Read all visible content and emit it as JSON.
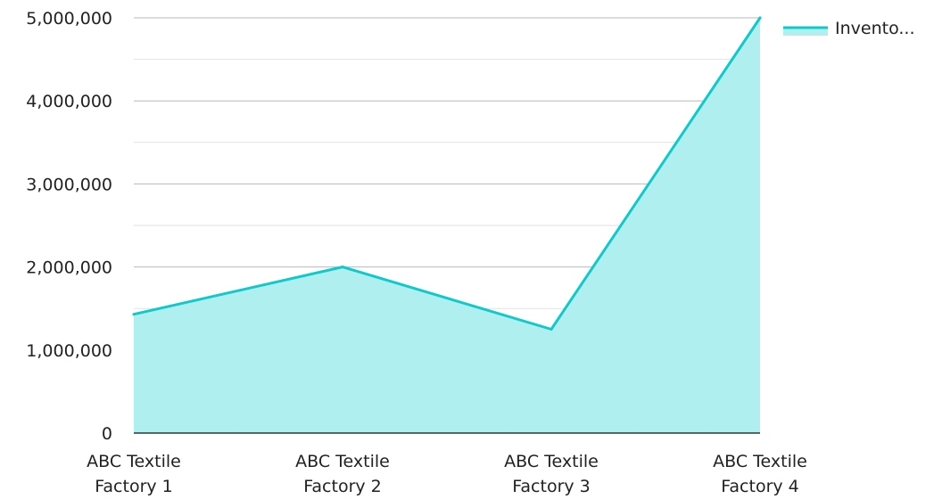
{
  "chart_data": {
    "type": "area",
    "categories": [
      [
        "ABC Textile",
        "Factory 1"
      ],
      [
        "ABC Textile",
        "Factory 2"
      ],
      [
        "ABC Textile",
        "Factory 3"
      ],
      [
        "ABC Textile",
        "Factory 4"
      ]
    ],
    "series": [
      {
        "name": "Invento...",
        "values": [
          1430000,
          2000000,
          1250000,
          5000000
        ]
      }
    ],
    "ylim": [
      0,
      5000000
    ],
    "yticks": [
      "0",
      "1,000,000",
      "2,000,000",
      "3,000,000",
      "4,000,000",
      "5,000,000"
    ],
    "grid": true,
    "legend_position": "top-right",
    "colors": {
      "line": "#12c9c9",
      "fill": "#b0efef",
      "major_grid": "#b8b8b8",
      "minor_grid": "#e2e2e2",
      "axis": "#333333"
    }
  }
}
